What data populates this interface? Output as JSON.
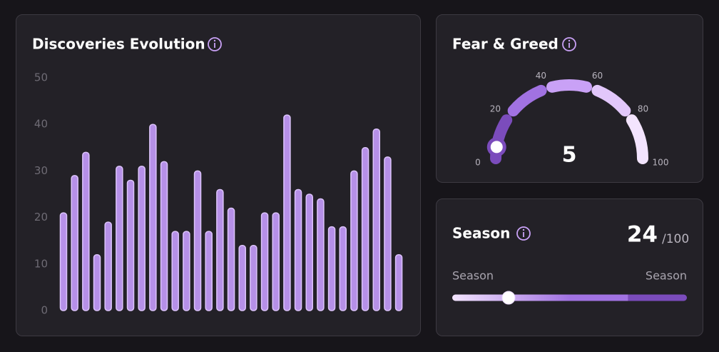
{
  "chart_data": [
    {
      "type": "bar",
      "title": "Discoveries Evolution",
      "values": [
        21,
        29,
        34,
        12,
        19,
        31,
        28,
        31,
        40,
        32,
        17,
        17,
        30,
        17,
        26,
        22,
        14,
        14,
        21,
        21,
        42,
        26,
        25,
        24,
        18,
        18,
        30,
        35,
        39,
        33,
        12
      ],
      "color": "#b690e8",
      "edge_color": "#dcc4fb",
      "ylim": [
        0,
        50
      ],
      "yticks": [
        0,
        10,
        20,
        30,
        40,
        50
      ],
      "grid": false
    },
    {
      "type": "gauge",
      "title": "Fear & Greed",
      "value": 5,
      "xlim": [
        0,
        100
      ],
      "xticks": [
        0,
        20,
        40,
        60,
        80,
        100
      ],
      "colors": [
        "#7b4cbc",
        "#a172e2",
        "#c9a1f6",
        "#e2c7fb",
        "#f3e4fe"
      ]
    },
    {
      "type": "meter",
      "title": "Season",
      "value": 24,
      "max_label": "/100",
      "xlim": [
        0,
        100
      ],
      "band_edges": [
        50,
        75
      ],
      "colors": [
        "#f3e4fe",
        "#a172e2",
        "#7b4cbc"
      ],
      "labels": [
        "Season",
        "Season"
      ]
    }
  ]
}
